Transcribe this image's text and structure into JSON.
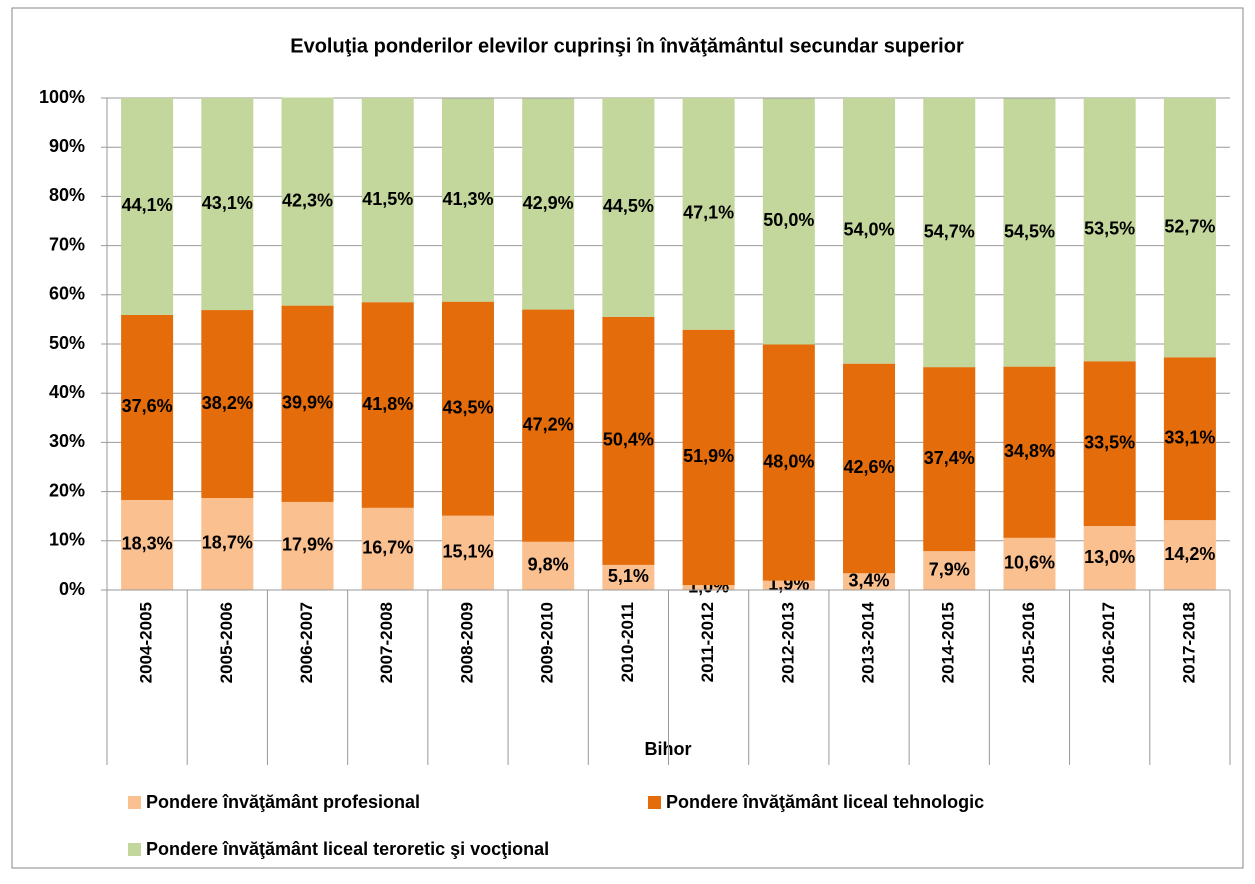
{
  "chart_data": {
    "type": "stacked_bar",
    "title": "Evoluţia ponderilor elevilor cuprinşi în învăţământul secundar superior",
    "x_label": "Bihor",
    "categories": [
      "2004-2005",
      "2005-2006",
      "2006-2007",
      "2007-2008",
      "2008-2009",
      "2009-2010",
      "2010-2011",
      "2011-2012",
      "2012-2013",
      "2013-2014",
      "2014-2015",
      "2015-2016",
      "2016-2017",
      "2017-2018"
    ],
    "series": [
      {
        "name": "Pondere învăţământ profesional",
        "color": "#fac090",
        "values": [
          18.3,
          18.7,
          17.9,
          16.7,
          15.1,
          9.8,
          5.1,
          1.0,
          1.9,
          3.4,
          7.9,
          10.6,
          13.0,
          14.2
        ],
        "value_labels": [
          "18,3%",
          "18,7%",
          "17,9%",
          "16,7%",
          "15,1%",
          "9,8%",
          "5,1%",
          "1,0%",
          "1,9%",
          "3,4%",
          "7,9%",
          "10,6%",
          "13,0%",
          "14,2%"
        ]
      },
      {
        "name": "Pondere învăţământ liceal tehnologic",
        "color": "#e46c0a",
        "values": [
          37.6,
          38.2,
          39.9,
          41.8,
          43.5,
          47.2,
          50.4,
          51.9,
          48.0,
          42.6,
          37.4,
          34.8,
          33.5,
          33.1
        ],
        "value_labels": [
          "37,6%",
          "38,2%",
          "39,9%",
          "41,8%",
          "43,5%",
          "47,2%",
          "50,4%",
          "51,9%",
          "48,0%",
          "42,6%",
          "37,4%",
          "34,8%",
          "33,5%",
          "33,1%"
        ]
      },
      {
        "name": "Pondere învăţământ liceal teroretic şi vocţional",
        "color": "#c3d69b",
        "values": [
          44.1,
          43.1,
          42.3,
          41.5,
          41.3,
          42.9,
          44.5,
          47.1,
          50.0,
          54.0,
          54.7,
          54.5,
          53.5,
          52.7
        ],
        "value_labels": [
          "44,1%",
          "43,1%",
          "42,3%",
          "41,5%",
          "41,3%",
          "42,9%",
          "44,5%",
          "47,1%",
          "50,0%",
          "54,0%",
          "54,7%",
          "54,5%",
          "53,5%",
          "52,7%"
        ]
      }
    ],
    "ylim": [
      0,
      100
    ],
    "yticks": [
      {
        "value": 0,
        "label": "0%"
      },
      {
        "value": 10,
        "label": "10%"
      },
      {
        "value": 20,
        "label": "20%"
      },
      {
        "value": 30,
        "label": "30%"
      },
      {
        "value": 40,
        "label": "40%"
      },
      {
        "value": 50,
        "label": "50%"
      },
      {
        "value": 60,
        "label": "60%"
      },
      {
        "value": 70,
        "label": "70%"
      },
      {
        "value": 80,
        "label": "80%"
      },
      {
        "value": 90,
        "label": "90%"
      },
      {
        "value": 100,
        "label": "100%"
      }
    ],
    "grid": true,
    "legend": "bottom"
  }
}
